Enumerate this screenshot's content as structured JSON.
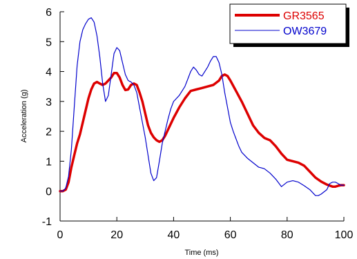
{
  "chart_data": {
    "type": "line",
    "title": "",
    "xlabel": "Time (ms)",
    "ylabel": "Acceleration (g)",
    "xlim": [
      0,
      100
    ],
    "ylim": [
      -1,
      6
    ],
    "xticks": [
      0,
      20,
      40,
      60,
      80,
      100
    ],
    "yticks": [
      -1,
      0,
      1,
      2,
      3,
      4,
      5,
      6
    ],
    "xtick_labels": [
      "0",
      "20",
      "40",
      "60",
      "80",
      "100"
    ],
    "ytick_labels": [
      "-1",
      "0",
      "1",
      "2",
      "3",
      "4",
      "5",
      "6"
    ],
    "grid": false,
    "legend_position": "top-right",
    "series": [
      {
        "name": "GR3565",
        "color": "#dd0000",
        "x": [
          0,
          1,
          2,
          3,
          4,
          5,
          6,
          7,
          8,
          9,
          10,
          11,
          12,
          13,
          14,
          15,
          16,
          17,
          18,
          19,
          20,
          21,
          22,
          23,
          24,
          25,
          26,
          27,
          28,
          29,
          30,
          31,
          32,
          33,
          34,
          35,
          36,
          37,
          38,
          40,
          42,
          44,
          46,
          48,
          50,
          52,
          54,
          56,
          57,
          58,
          59,
          60,
          62,
          64,
          66,
          68,
          70,
          72,
          74,
          76,
          78,
          80,
          82,
          84,
          86,
          88,
          90,
          92,
          94,
          96,
          97,
          98,
          99,
          100
        ],
        "y": [
          0.0,
          0.0,
          0.05,
          0.3,
          0.8,
          1.2,
          1.6,
          1.9,
          2.3,
          2.7,
          3.1,
          3.4,
          3.6,
          3.65,
          3.6,
          3.55,
          3.6,
          3.7,
          3.8,
          3.95,
          3.95,
          3.8,
          3.55,
          3.38,
          3.4,
          3.55,
          3.6,
          3.55,
          3.3,
          3.0,
          2.6,
          2.2,
          1.95,
          1.8,
          1.7,
          1.65,
          1.7,
          1.85,
          2.05,
          2.45,
          2.8,
          3.1,
          3.35,
          3.4,
          3.45,
          3.5,
          3.55,
          3.7,
          3.85,
          3.9,
          3.85,
          3.7,
          3.35,
          3.0,
          2.6,
          2.2,
          1.95,
          1.78,
          1.7,
          1.5,
          1.25,
          1.05,
          1.0,
          0.95,
          0.85,
          0.65,
          0.45,
          0.32,
          0.22,
          0.15,
          0.15,
          0.18,
          0.2,
          0.2
        ]
      },
      {
        "name": "OW3679",
        "color": "#0000cc",
        "x": [
          0,
          1,
          2,
          3,
          4,
          5,
          6,
          7,
          8,
          9,
          10,
          11,
          12,
          13,
          14,
          15,
          16,
          17,
          18,
          19,
          20,
          21,
          22,
          23,
          24,
          25,
          26,
          27,
          28,
          29,
          30,
          31,
          32,
          33,
          34,
          35,
          36,
          37,
          38,
          39,
          40,
          42,
          44,
          45,
          46,
          47,
          48,
          49,
          50,
          51,
          52,
          53,
          54,
          55,
          56,
          57,
          58,
          59,
          60,
          61,
          62,
          63,
          64,
          66,
          68,
          70,
          72,
          74,
          76,
          78,
          80,
          82,
          84,
          86,
          88,
          90,
          91,
          92,
          94,
          95,
          96,
          97,
          98,
          99,
          100
        ],
        "y": [
          0.0,
          0.0,
          0.1,
          0.5,
          1.4,
          2.8,
          4.2,
          5.0,
          5.4,
          5.6,
          5.75,
          5.8,
          5.65,
          5.2,
          4.5,
          3.6,
          3.0,
          3.2,
          3.9,
          4.6,
          4.8,
          4.7,
          4.3,
          3.9,
          3.7,
          3.65,
          3.55,
          3.3,
          2.8,
          2.3,
          1.8,
          1.2,
          0.6,
          0.35,
          0.45,
          1.0,
          1.6,
          2.0,
          2.4,
          2.75,
          3.0,
          3.2,
          3.5,
          3.75,
          4.0,
          4.15,
          4.05,
          3.9,
          3.85,
          4.0,
          4.15,
          4.35,
          4.5,
          4.5,
          4.3,
          3.9,
          3.3,
          2.8,
          2.3,
          2.0,
          1.75,
          1.5,
          1.3,
          1.1,
          0.95,
          0.8,
          0.75,
          0.6,
          0.4,
          0.15,
          0.3,
          0.35,
          0.3,
          0.18,
          0.05,
          -0.15,
          -0.15,
          -0.1,
          0.05,
          0.25,
          0.3,
          0.3,
          0.25,
          0.2,
          0.2
        ]
      }
    ]
  }
}
